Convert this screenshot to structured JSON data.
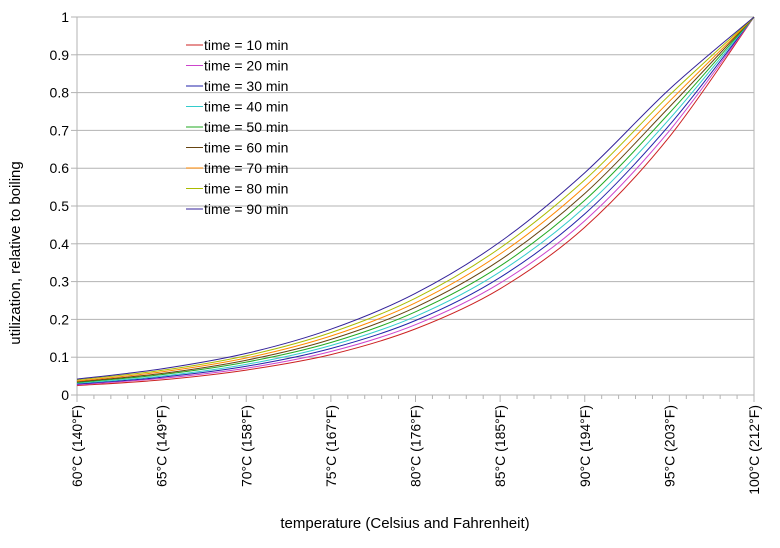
{
  "chart_data": {
    "type": "line",
    "xlabel": "temperature (Celsius and Fahrenheit)",
    "ylabel": "utilization, relative to boiling",
    "ylim": [
      0,
      1
    ],
    "yticks": [
      "0",
      "0.1",
      "0.2",
      "0.3",
      "0.4",
      "0.5",
      "0.6",
      "0.7",
      "0.8",
      "0.9",
      "1"
    ],
    "categories": [
      "60°C (140°F)",
      "65°C (149°F)",
      "70°C (158°F)",
      "75°C (167°F)",
      "80°C (176°F)",
      "85°C (185°F)",
      "90°C (194°F)",
      "95°C (203°F)",
      "100°C (212°F)"
    ],
    "x": [
      60,
      65,
      70,
      75,
      80,
      85,
      90,
      95,
      100
    ],
    "grid": "horizontal",
    "legend_position": "top-left",
    "series": [
      {
        "name": "time = 10 min",
        "color": "#cc2222",
        "values": [
          0.025,
          0.04,
          0.066,
          0.107,
          0.175,
          0.281,
          0.444,
          0.683,
          1.0
        ]
      },
      {
        "name": "time = 20 min",
        "color": "#cc44cc",
        "values": [
          0.027,
          0.044,
          0.071,
          0.115,
          0.186,
          0.296,
          0.461,
          0.699,
          1.0
        ]
      },
      {
        "name": "time = 30 min",
        "color": "#2222aa",
        "values": [
          0.029,
          0.047,
          0.076,
          0.123,
          0.197,
          0.311,
          0.479,
          0.714,
          1.0
        ]
      },
      {
        "name": "time = 40 min",
        "color": "#33cccc",
        "values": [
          0.031,
          0.05,
          0.081,
          0.131,
          0.208,
          0.326,
          0.497,
          0.73,
          1.0
        ]
      },
      {
        "name": "time = 50 min",
        "color": "#22aa22",
        "values": [
          0.033,
          0.054,
          0.087,
          0.139,
          0.22,
          0.341,
          0.515,
          0.746,
          1.0
        ]
      },
      {
        "name": "time = 60 min",
        "color": "#664411",
        "values": [
          0.035,
          0.057,
          0.092,
          0.147,
          0.232,
          0.357,
          0.533,
          0.762,
          1.0
        ]
      },
      {
        "name": "time = 70 min",
        "color": "#ff8800",
        "values": [
          0.037,
          0.061,
          0.098,
          0.156,
          0.244,
          0.373,
          0.551,
          0.777,
          1.0
        ]
      },
      {
        "name": "time = 80 min",
        "color": "#aabb00",
        "values": [
          0.04,
          0.065,
          0.104,
          0.165,
          0.256,
          0.389,
          0.569,
          0.793,
          1.0
        ]
      },
      {
        "name": "time = 90 min",
        "color": "#332299",
        "values": [
          0.042,
          0.069,
          0.11,
          0.174,
          0.269,
          0.405,
          0.588,
          0.809,
          1.0
        ]
      }
    ]
  }
}
